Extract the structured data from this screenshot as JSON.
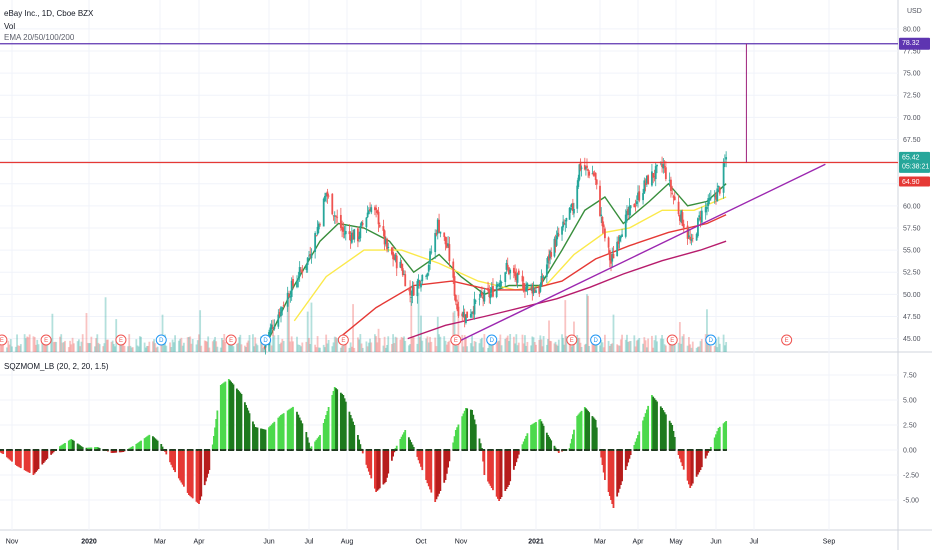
{
  "header": {
    "symbol_line": "eBay Inc., 1D, Cboe BZX",
    "vol_label": "Vol",
    "ema_label": "EMA 20/50/100/200",
    "currency": "USD",
    "sqz_label": "SQZMOM_LB (20, 2, 20, 1.5)"
  },
  "colors": {
    "up": "#26a69a",
    "down": "#ef5350",
    "ema20": "#388e3c",
    "ema50": "#fbe94a",
    "ema100": "#e53935",
    "ema200": "#b71c6c",
    "trendline": "#9c27b0",
    "resistance": "#e53935",
    "target": "#5e35b1",
    "mom_pos_strong": "#4cd94c",
    "mom_pos_weak": "#1f7a1f",
    "mom_neg_strong": "#e53935",
    "mom_neg_weak": "#b71c1c"
  },
  "price_tags": {
    "target": "78.32",
    "last_price": "65.42",
    "countdown": "05:38:21",
    "resistance": "64.90"
  },
  "chart_data": [
    {
      "type": "candlestick",
      "title": "eBay Inc., 1D, Cboe BZX",
      "ylim": [
        44.5,
        81.0
      ],
      "y_ticks": [
        "80.00",
        "77.50",
        "75.00",
        "72.50",
        "70.00",
        "67.50",
        "65.00",
        "62.50",
        "60.00",
        "57.50",
        "55.00",
        "52.50",
        "50.00",
        "47.50",
        "45.00"
      ],
      "x_ticks": [
        "Nov",
        "2020",
        "Mar",
        "Apr",
        "Jun",
        "Jul",
        "Aug",
        "Oct",
        "Nov",
        "2021",
        "Mar",
        "Apr",
        "May",
        "Jun",
        "Jul",
        "Sep"
      ],
      "price_path": [
        {
          "date": "2020-05-28",
          "close": 44.0
        },
        {
          "date": "2020-06-02",
          "close": 46.0
        },
        {
          "date": "2020-06-15",
          "close": 50.0
        },
        {
          "date": "2020-06-30",
          "close": 54.0
        },
        {
          "date": "2020-07-09",
          "close": 58.0
        },
        {
          "date": "2020-07-15",
          "close": 61.5
        },
        {
          "date": "2020-07-22",
          "close": 59.0
        },
        {
          "date": "2020-07-29",
          "close": 57.0
        },
        {
          "date": "2020-08-10",
          "close": 56.5
        },
        {
          "date": "2020-08-20",
          "close": 60.0
        },
        {
          "date": "2020-08-27",
          "close": 58.5
        },
        {
          "date": "2020-09-03",
          "close": 55.0
        },
        {
          "date": "2020-09-15",
          "close": 53.0
        },
        {
          "date": "2020-09-22",
          "close": 50.0
        },
        {
          "date": "2020-10-06",
          "close": 53.0
        },
        {
          "date": "2020-10-14",
          "close": 58.0
        },
        {
          "date": "2020-10-22",
          "close": 55.0
        },
        {
          "date": "2020-10-29",
          "close": 48.5
        },
        {
          "date": "2020-11-05",
          "close": 47.5
        },
        {
          "date": "2020-11-16",
          "close": 49.5
        },
        {
          "date": "2020-11-25",
          "close": 50.0
        },
        {
          "date": "2020-12-08",
          "close": 53.0
        },
        {
          "date": "2020-12-21",
          "close": 51.0
        },
        {
          "date": "2021-01-04",
          "close": 50.5
        },
        {
          "date": "2021-01-15",
          "close": 55.0
        },
        {
          "date": "2021-01-28",
          "close": 58.0
        },
        {
          "date": "2021-02-05",
          "close": 60.0
        },
        {
          "date": "2021-02-10",
          "close": 64.5
        },
        {
          "date": "2021-02-24",
          "close": 63.5
        },
        {
          "date": "2021-03-04",
          "close": 57.0
        },
        {
          "date": "2021-03-10",
          "close": 53.5
        },
        {
          "date": "2021-03-17",
          "close": 57.0
        },
        {
          "date": "2021-03-26",
          "close": 59.5
        },
        {
          "date": "2021-04-09",
          "close": 63.0
        },
        {
          "date": "2021-04-21",
          "close": 64.5
        },
        {
          "date": "2021-04-30",
          "close": 60.5
        },
        {
          "date": "2021-05-07",
          "close": 58.0
        },
        {
          "date": "2021-05-13",
          "close": 55.5
        },
        {
          "date": "2021-05-20",
          "close": 59.0
        },
        {
          "date": "2021-05-28",
          "close": 60.5
        },
        {
          "date": "2021-06-04",
          "close": 62.0
        },
        {
          "date": "2021-06-09",
          "close": 65.42
        }
      ],
      "ema20": [
        {
          "date": "2020-06-01",
          "value": 45.0
        },
        {
          "date": "2020-06-20",
          "value": 51.0
        },
        {
          "date": "2020-07-10",
          "value": 56.0
        },
        {
          "date": "2020-07-25",
          "value": 58.0
        },
        {
          "date": "2020-08-15",
          "value": 57.5
        },
        {
          "date": "2020-09-05",
          "value": 56.0
        },
        {
          "date": "2020-09-25",
          "value": 52.5
        },
        {
          "date": "2020-10-15",
          "value": 54.5
        },
        {
          "date": "2020-11-01",
          "value": 52.0
        },
        {
          "date": "2020-11-20",
          "value": 50.0
        },
        {
          "date": "2020-12-10",
          "value": 51.0
        },
        {
          "date": "2021-01-05",
          "value": 51.0
        },
        {
          "date": "2021-01-25",
          "value": 55.0
        },
        {
          "date": "2021-02-15",
          "value": 59.5
        },
        {
          "date": "2021-03-05",
          "value": 61.0
        },
        {
          "date": "2021-03-20",
          "value": 58.0
        },
        {
          "date": "2021-04-10",
          "value": 60.5
        },
        {
          "date": "2021-04-25",
          "value": 62.5
        },
        {
          "date": "2021-05-10",
          "value": 60.0
        },
        {
          "date": "2021-05-25",
          "value": 60.5
        },
        {
          "date": "2021-06-09",
          "value": 62.5
        }
      ],
      "ema50": [
        {
          "date": "2020-06-20",
          "value": 47.0
        },
        {
          "date": "2020-07-15",
          "value": 52.0
        },
        {
          "date": "2020-08-15",
          "value": 55.0
        },
        {
          "date": "2020-09-15",
          "value": 55.0
        },
        {
          "date": "2020-10-15",
          "value": 53.5
        },
        {
          "date": "2020-11-15",
          "value": 51.5
        },
        {
          "date": "2020-12-15",
          "value": 50.5
        },
        {
          "date": "2021-01-10",
          "value": 51.0
        },
        {
          "date": "2021-02-05",
          "value": 54.5
        },
        {
          "date": "2021-03-05",
          "value": 57.0
        },
        {
          "date": "2021-03-25",
          "value": 57.5
        },
        {
          "date": "2021-04-20",
          "value": 59.5
        },
        {
          "date": "2021-05-15",
          "value": 59.5
        },
        {
          "date": "2021-06-09",
          "value": 61.0
        }
      ],
      "ema100": [
        {
          "date": "2020-07-25",
          "value": 45.0
        },
        {
          "date": "2020-08-25",
          "value": 48.5
        },
        {
          "date": "2020-09-25",
          "value": 51.0
        },
        {
          "date": "2020-10-25",
          "value": 51.5
        },
        {
          "date": "2020-11-25",
          "value": 50.5
        },
        {
          "date": "2020-12-25",
          "value": 50.5
        },
        {
          "date": "2021-01-25",
          "value": 51.5
        },
        {
          "date": "2021-02-25",
          "value": 54.0
        },
        {
          "date": "2021-03-25",
          "value": 55.5
        },
        {
          "date": "2021-04-25",
          "value": 57.0
        },
        {
          "date": "2021-05-25",
          "value": 58.0
        },
        {
          "date": "2021-06-09",
          "value": 59.0
        }
      ],
      "ema200": [
        {
          "date": "2020-09-20",
          "value": 45.0
        },
        {
          "date": "2020-10-20",
          "value": 46.5
        },
        {
          "date": "2020-11-20",
          "value": 47.5
        },
        {
          "date": "2020-12-20",
          "value": 48.5
        },
        {
          "date": "2021-01-20",
          "value": 49.5
        },
        {
          "date": "2021-02-20",
          "value": 50.8
        },
        {
          "date": "2021-03-20",
          "value": 52.3
        },
        {
          "date": "2021-04-20",
          "value": 53.8
        },
        {
          "date": "2021-05-20",
          "value": 55.0
        },
        {
          "date": "2021-06-09",
          "value": 56.0
        }
      ],
      "trendline": [
        {
          "date": "2020-10-29",
          "value": 44.6
        },
        {
          "date": "2021-08-29",
          "value": 64.7
        }
      ],
      "resistance": 64.9,
      "target": {
        "value": 78.32,
        "from_date": "2021-06-25"
      },
      "earnings_events": [
        {
          "date": "2019-10-24",
          "label": "E"
        },
        {
          "date": "2019-11-28",
          "label": "E"
        },
        {
          "date": "2020-01-28",
          "label": "E"
        },
        {
          "date": "2020-03-02",
          "label": "D"
        },
        {
          "date": "2020-04-29",
          "label": "E"
        },
        {
          "date": "2020-05-29",
          "label": "D"
        },
        {
          "date": "2020-07-29",
          "label": "E"
        },
        {
          "date": "2020-10-28",
          "label": "E"
        },
        {
          "date": "2020-11-26",
          "label": "D"
        },
        {
          "date": "2021-02-03",
          "label": "E"
        },
        {
          "date": "2021-02-25",
          "label": "D"
        },
        {
          "date": "2021-04-28",
          "label": "E"
        },
        {
          "date": "2021-05-28",
          "label": "D"
        },
        {
          "date": "2021-07-28",
          "label": "E"
        }
      ]
    },
    {
      "type": "histogram",
      "title": "SQZMOM_LB (20, 2, 20, 1.5)",
      "ylim": [
        -6.2,
        8.2
      ],
      "y_ticks": [
        "7.50",
        "5.00",
        "2.50",
        "0.00",
        "-2.50",
        "-5.00"
      ],
      "momentum": [
        {
          "date": "2019-10-15",
          "value": 0.3
        },
        {
          "date": "2019-10-25",
          "value": -0.4
        },
        {
          "date": "2019-11-05",
          "value": -1.6
        },
        {
          "date": "2019-11-18",
          "value": -2.5
        },
        {
          "date": "2019-11-28",
          "value": -1.0
        },
        {
          "date": "2019-12-08",
          "value": 0.3
        },
        {
          "date": "2019-12-18",
          "value": 1.1
        },
        {
          "date": "2019-12-28",
          "value": 0.2
        },
        {
          "date": "2020-01-08",
          "value": 0.3
        },
        {
          "date": "2020-01-20",
          "value": -0.3
        },
        {
          "date": "2020-01-30",
          "value": -0.2
        },
        {
          "date": "2020-02-10",
          "value": 0.6
        },
        {
          "date": "2020-02-22",
          "value": 1.6
        },
        {
          "date": "2020-03-02",
          "value": 0.6
        },
        {
          "date": "2020-03-12",
          "value": -2.0
        },
        {
          "date": "2020-03-24",
          "value": -4.5
        },
        {
          "date": "2020-04-01",
          "value": -5.4
        },
        {
          "date": "2020-04-10",
          "value": -2.0
        },
        {
          "date": "2020-04-20",
          "value": 6.5
        },
        {
          "date": "2020-04-27",
          "value": 7.1
        },
        {
          "date": "2020-05-08",
          "value": 5.6
        },
        {
          "date": "2020-05-20",
          "value": 2.3
        },
        {
          "date": "2020-05-30",
          "value": 2.0
        },
        {
          "date": "2020-06-10",
          "value": 3.5
        },
        {
          "date": "2020-06-20",
          "value": 4.4
        },
        {
          "date": "2020-06-29",
          "value": 1.8
        },
        {
          "date": "2020-07-02",
          "value": 0.2
        },
        {
          "date": "2020-07-10",
          "value": 1.5
        },
        {
          "date": "2020-07-22",
          "value": 6.3
        },
        {
          "date": "2020-07-29",
          "value": 5.5
        },
        {
          "date": "2020-08-10",
          "value": 1.5
        },
        {
          "date": "2020-08-15",
          "value": -0.8
        },
        {
          "date": "2020-08-25",
          "value": -4.2
        },
        {
          "date": "2020-09-02",
          "value": -3.2
        },
        {
          "date": "2020-09-10",
          "value": 0.2
        },
        {
          "date": "2020-09-18",
          "value": 2.0
        },
        {
          "date": "2020-09-25",
          "value": 0.3
        },
        {
          "date": "2020-10-05",
          "value": -3.0
        },
        {
          "date": "2020-10-12",
          "value": -5.2
        },
        {
          "date": "2020-10-20",
          "value": -3.0
        },
        {
          "date": "2020-10-28",
          "value": 2.0
        },
        {
          "date": "2020-11-05",
          "value": 4.2
        },
        {
          "date": "2020-11-10",
          "value": 4.0
        },
        {
          "date": "2020-11-18",
          "value": 0.2
        },
        {
          "date": "2020-11-20",
          "value": -2.5
        },
        {
          "date": "2020-12-02",
          "value": -5.1
        },
        {
          "date": "2020-12-10",
          "value": -3.5
        },
        {
          "date": "2020-12-20",
          "value": 0.3
        },
        {
          "date": "2020-12-28",
          "value": 2.5
        },
        {
          "date": "2021-01-05",
          "value": 3.1
        },
        {
          "date": "2021-01-12",
          "value": 1.5
        },
        {
          "date": "2021-01-22",
          "value": -0.3
        },
        {
          "date": "2021-02-01",
          "value": 0.2
        },
        {
          "date": "2021-02-08",
          "value": 3.4
        },
        {
          "date": "2021-02-15",
          "value": 4.3
        },
        {
          "date": "2021-02-25",
          "value": 3.0
        },
        {
          "date": "2021-03-05",
          "value": -3.0
        },
        {
          "date": "2021-03-12",
          "value": -5.8
        },
        {
          "date": "2021-03-18",
          "value": -3.5
        },
        {
          "date": "2021-03-26",
          "value": -0.5
        },
        {
          "date": "2021-04-01",
          "value": 1.5
        },
        {
          "date": "2021-04-12",
          "value": 5.5
        },
        {
          "date": "2021-04-20",
          "value": 4.2
        },
        {
          "date": "2021-04-28",
          "value": 2.5
        },
        {
          "date": "2021-05-03",
          "value": -0.5
        },
        {
          "date": "2021-05-12",
          "value": -3.8
        },
        {
          "date": "2021-05-20",
          "value": -2.0
        },
        {
          "date": "2021-05-28",
          "value": 0.3
        },
        {
          "date": "2021-06-03",
          "value": 2.2
        },
        {
          "date": "2021-06-09",
          "value": 2.9
        }
      ]
    }
  ]
}
